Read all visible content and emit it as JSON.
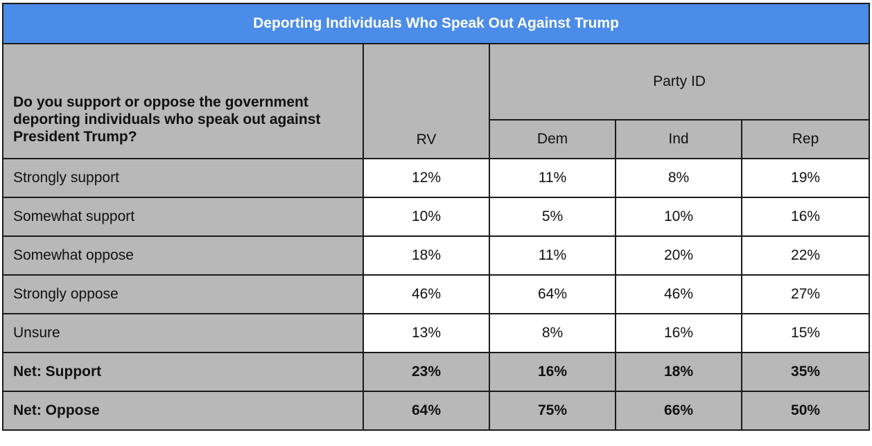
{
  "title": "Deporting Individuals Who Speak Out Against Trump",
  "question": "Do you support or oppose the government deporting individuals who speak out against President Trump?",
  "group_header": "Party ID",
  "columns": [
    "RV",
    "Dem",
    "Ind",
    "Rep"
  ],
  "rows": [
    {
      "label": "Strongly support",
      "values": [
        "12%",
        "11%",
        "8%",
        "19%"
      ],
      "net": false
    },
    {
      "label": "Somewhat support",
      "values": [
        "10%",
        "5%",
        "10%",
        "16%"
      ],
      "net": false
    },
    {
      "label": "Somewhat oppose",
      "values": [
        "18%",
        "11%",
        "20%",
        "22%"
      ],
      "net": false
    },
    {
      "label": "Strongly oppose",
      "values": [
        "46%",
        "64%",
        "46%",
        "27%"
      ],
      "net": false
    },
    {
      "label": "Unsure",
      "values": [
        "13%",
        "8%",
        "16%",
        "15%"
      ],
      "net": false
    },
    {
      "label": "Net: Support",
      "values": [
        "23%",
        "16%",
        "18%",
        "35%"
      ],
      "net": true
    },
    {
      "label": "Net: Oppose",
      "values": [
        "64%",
        "75%",
        "66%",
        "50%"
      ],
      "net": true
    }
  ],
  "colors": {
    "title_bg": "#4b8ce8",
    "header_bg": "#b8b8b8",
    "cell_bg": "#ffffff"
  },
  "chart_data": {
    "type": "table",
    "title": "Deporting Individuals Who Speak Out Against Trump",
    "columns": [
      "RV",
      "Dem",
      "Ind",
      "Rep"
    ],
    "rows": [
      "Strongly support",
      "Somewhat support",
      "Somewhat oppose",
      "Strongly oppose",
      "Unsure",
      "Net: Support",
      "Net: Oppose"
    ],
    "series": [
      {
        "name": "RV",
        "values": [
          12,
          10,
          18,
          46,
          13,
          23,
          64
        ]
      },
      {
        "name": "Dem",
        "values": [
          11,
          5,
          11,
          64,
          8,
          16,
          75
        ]
      },
      {
        "name": "Ind",
        "values": [
          8,
          10,
          20,
          46,
          16,
          18,
          66
        ]
      },
      {
        "name": "Rep",
        "values": [
          19,
          16,
          22,
          27,
          15,
          35,
          50
        ]
      }
    ]
  }
}
